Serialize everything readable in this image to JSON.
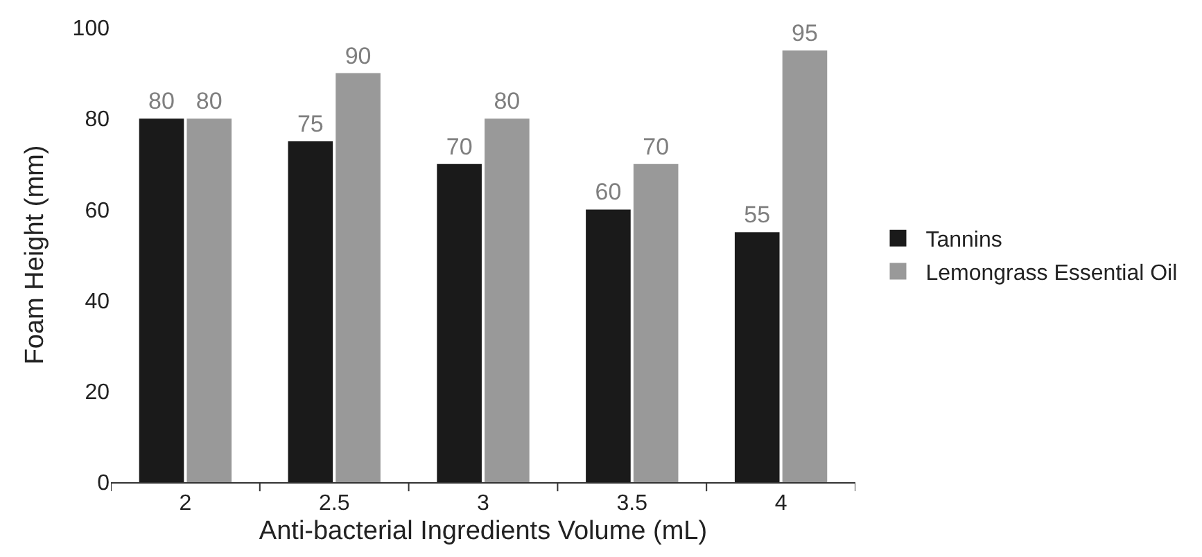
{
  "chart_data": {
    "type": "bar",
    "xlabel": "Anti-bacterial Ingredients Volume (mL)",
    "ylabel": "Foam Height (mm)",
    "categories": [
      "2",
      "2.5",
      "3",
      "3.5",
      "4"
    ],
    "series": [
      {
        "name": "Tannins",
        "color": "#1a1a1a",
        "values": [
          80,
          75,
          70,
          60,
          55
        ]
      },
      {
        "name": "Lemongrass Essential Oil",
        "color": "#999999",
        "values": [
          80,
          90,
          80,
          70,
          95
        ]
      }
    ],
    "ylim": [
      0,
      100
    ],
    "yticks": [
      0,
      20,
      40,
      60,
      80,
      100
    ],
    "grid": false,
    "legend": "right",
    "data_labels": true
  }
}
